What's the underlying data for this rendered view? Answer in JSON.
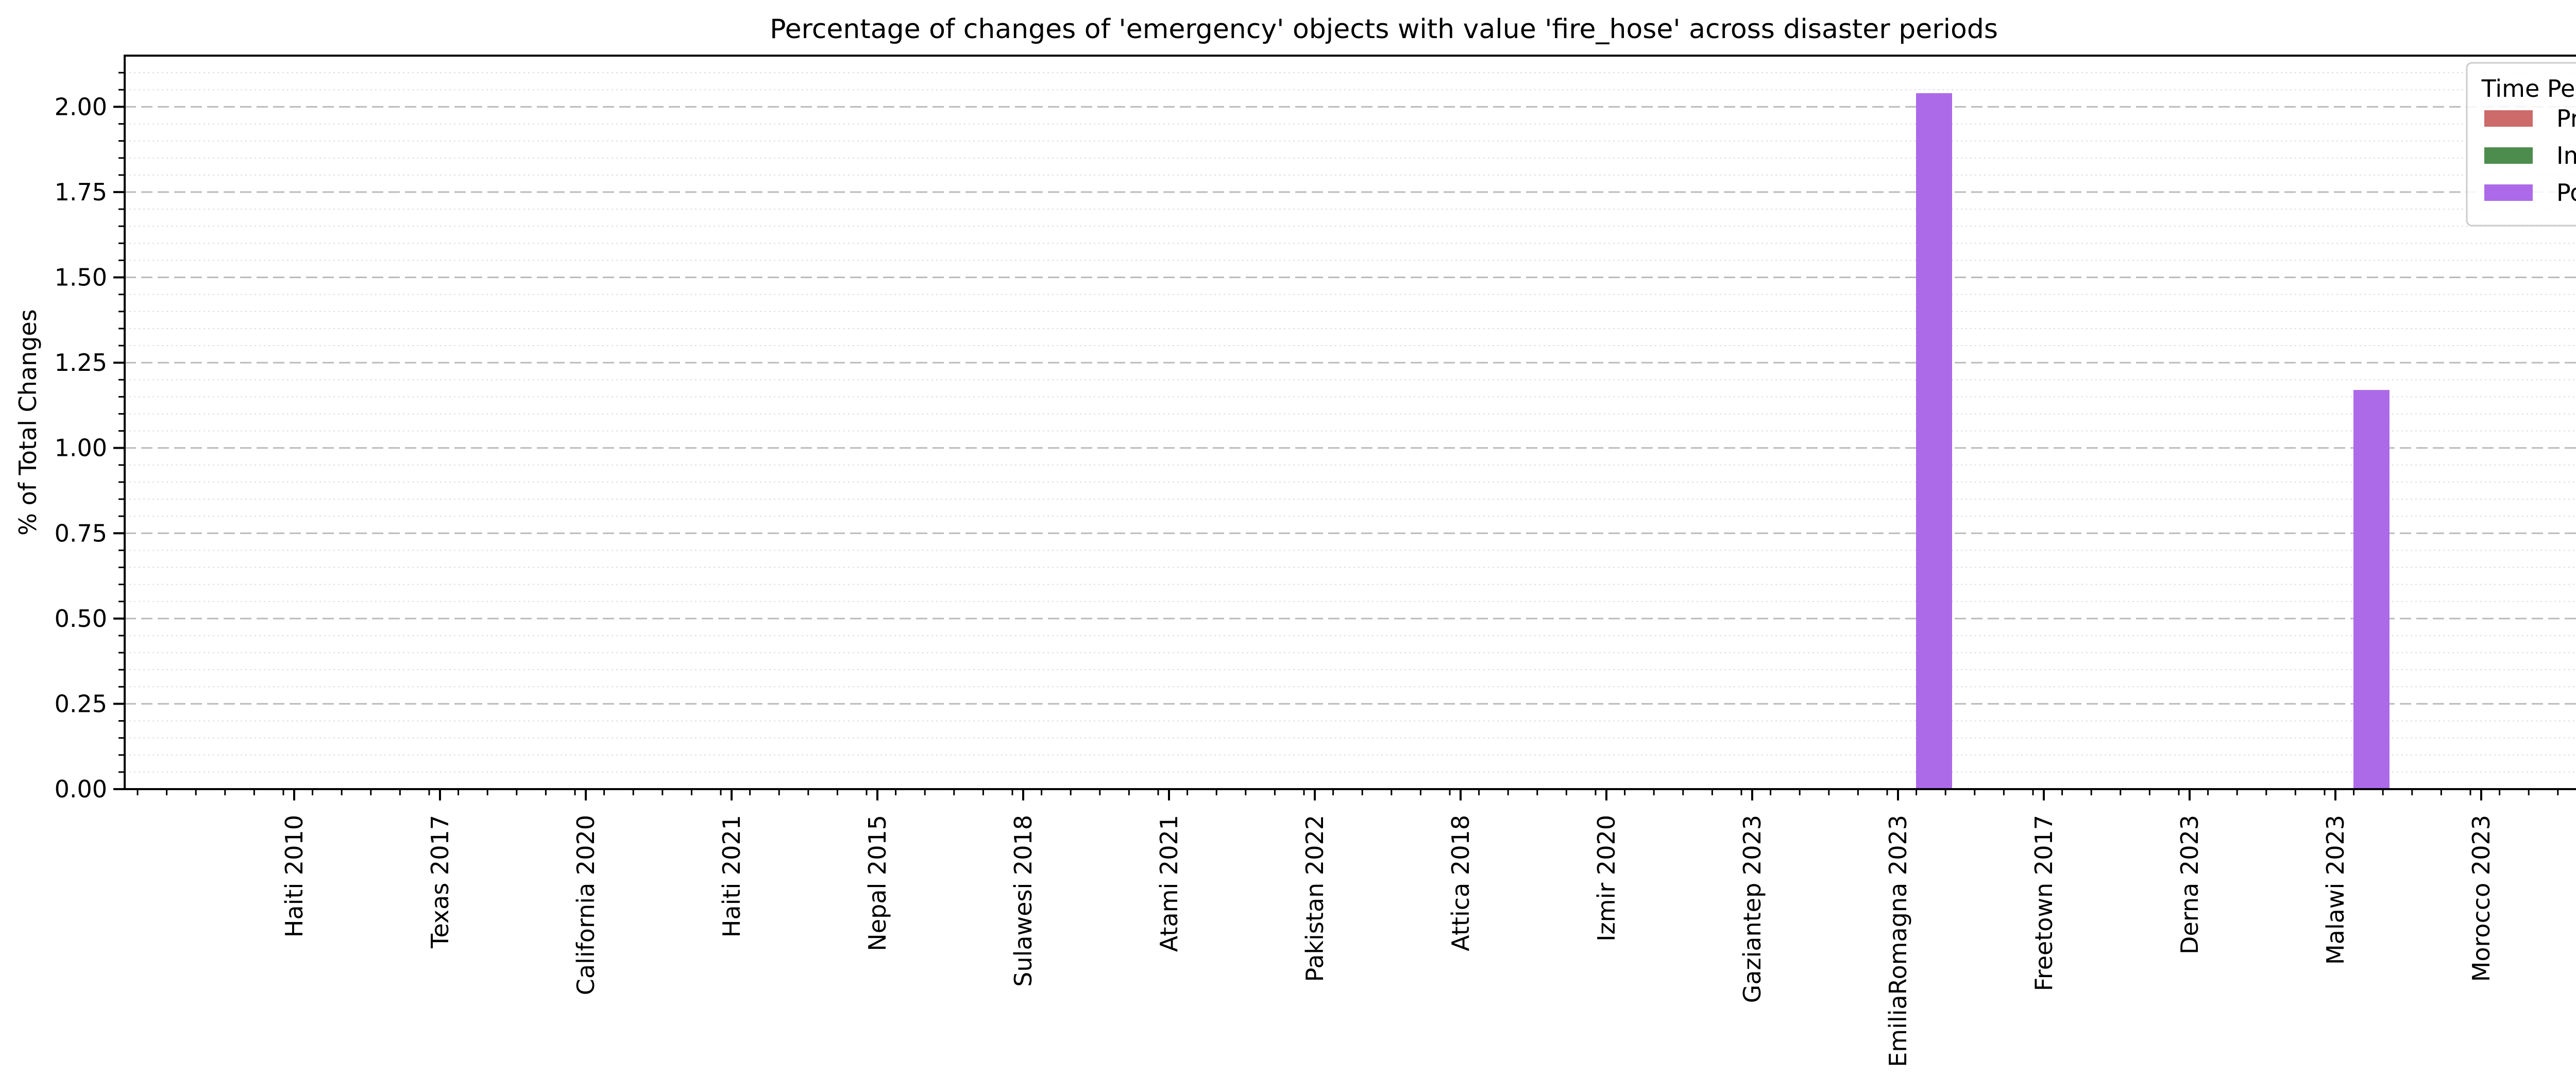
{
  "chart_data": {
    "type": "bar",
    "title": "Percentage of changes of 'emergency' objects with value 'fire_hose' across disaster periods",
    "xlabel": "",
    "ylabel": "% of Total Changes",
    "categories": [
      "Haiti 2010",
      "Texas 2017",
      "California 2020",
      "Haiti 2021",
      "Nepal 2015",
      "Sulawesi 2018",
      "Atami 2021",
      "Pakistan 2022",
      "Attica 2018",
      "Izmir 2020",
      "Gaziantep 2023",
      "EmiliaRomagna 2023",
      "Freetown 2017",
      "Derna 2023",
      "Malawi 2023",
      "Morocco 2023"
    ],
    "series": [
      {
        "name": "Pre",
        "color": "#cd6a6a",
        "values": [
          0,
          0,
          0,
          0,
          0,
          0,
          0,
          0,
          0,
          0,
          0,
          0,
          0,
          0,
          0,
          0
        ]
      },
      {
        "name": "Imm",
        "color": "#4c8c4c",
        "values": [
          0,
          0,
          0,
          0,
          0,
          0,
          0,
          0,
          0,
          0,
          0,
          0,
          0,
          0,
          0,
          0
        ]
      },
      {
        "name": "Post",
        "color": "#ad6ae8",
        "values": [
          0,
          0,
          0,
          0,
          0,
          0,
          0,
          0,
          0,
          0,
          0,
          2.04,
          0,
          0,
          1.17,
          0
        ]
      }
    ],
    "ylim": [
      0,
      2.15
    ],
    "yticks": [
      "0.00",
      "0.25",
      "0.50",
      "0.75",
      "1.00",
      "1.25",
      "1.50",
      "1.75",
      "2.00"
    ],
    "legend": {
      "title": "Time Period",
      "placement": "top-right"
    },
    "grid": {
      "major": "dashed",
      "minor": "dotted"
    }
  }
}
